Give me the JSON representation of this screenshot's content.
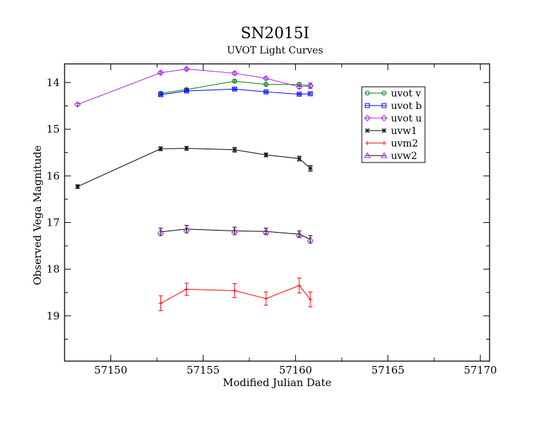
{
  "chart_data": {
    "type": "line",
    "title": "SN2015I",
    "subtitle": "UVOT Light Curves",
    "xlabel": "Modified Julian Date",
    "ylabel": "Observed Vega Magnitude",
    "xlim": [
      57147.5,
      57170.5
    ],
    "ylim": [
      13.6,
      19.97
    ],
    "y_inverted": true,
    "x_ticks": [
      57150,
      57155,
      57160,
      57165,
      57170
    ],
    "x_tick_labels": [
      "57150",
      "57155",
      "57160",
      "57165",
      "57170"
    ],
    "y_ticks": [
      14,
      15,
      16,
      17,
      18,
      19
    ],
    "y_tick_labels": [
      "14",
      "15",
      "16",
      "17",
      "18",
      "19"
    ],
    "grid": false,
    "legend_position": "top-right",
    "series": [
      {
        "name": "uvot v",
        "color": "#008000",
        "marker": "circle",
        "x": [
          57152.7,
          57154.1,
          57156.7,
          57158.4,
          57160.2,
          57160.8
        ],
        "y": [
          14.23,
          14.15,
          13.97,
          14.04,
          14.04,
          14.07
        ],
        "err": [
          0.03,
          0.03,
          0.03,
          0.03,
          0.03,
          0.03
        ]
      },
      {
        "name": "uvot b",
        "color": "#0000ff",
        "marker": "square",
        "x": [
          57152.7,
          57154.1,
          57156.7,
          57158.4,
          57160.2,
          57160.8
        ],
        "y": [
          14.26,
          14.18,
          14.14,
          14.2,
          14.25,
          14.24
        ],
        "err": [
          0.02,
          0.02,
          0.02,
          0.02,
          0.02,
          0.02
        ]
      },
      {
        "name": "uvot u",
        "color": "#a020f0",
        "marker": "diamond",
        "x": [
          57148.2,
          57152.7,
          57154.1,
          57156.7,
          57158.4,
          57160.2,
          57160.8
        ],
        "y": [
          14.47,
          13.79,
          13.71,
          13.8,
          13.91,
          14.09,
          14.07
        ],
        "err": [
          0.03,
          0.03,
          0.03,
          0.03,
          0.03,
          0.04,
          0.06
        ]
      },
      {
        "name": "uvw1",
        "color": "#000000",
        "marker": "star",
        "x": [
          57148.2,
          57152.7,
          57154.1,
          57156.7,
          57158.4,
          57160.2,
          57160.8
        ],
        "y": [
          16.23,
          15.42,
          15.41,
          15.44,
          15.55,
          15.63,
          15.84
        ],
        "err": [
          0.04,
          0.04,
          0.04,
          0.05,
          0.04,
          0.05,
          0.06
        ]
      },
      {
        "name": "uvm2",
        "color": "#ff0000",
        "marker": "plus",
        "x": [
          57152.7,
          57154.1,
          57156.7,
          57158.4,
          57160.2,
          57160.8
        ],
        "y": [
          18.73,
          18.43,
          18.46,
          18.63,
          18.35,
          18.65
        ],
        "err": [
          0.16,
          0.13,
          0.15,
          0.14,
          0.16,
          0.16
        ]
      },
      {
        "name": "uvw2",
        "color": "#000000",
        "marker": "triangle",
        "markerColor": "#a020f0",
        "x": [
          57152.7,
          57154.1,
          57156.7,
          57158.4,
          57160.2,
          57160.8
        ],
        "y": [
          17.2,
          17.14,
          17.18,
          17.19,
          17.25,
          17.36
        ],
        "err": [
          0.08,
          0.08,
          0.08,
          0.07,
          0.07,
          0.08
        ]
      }
    ]
  }
}
